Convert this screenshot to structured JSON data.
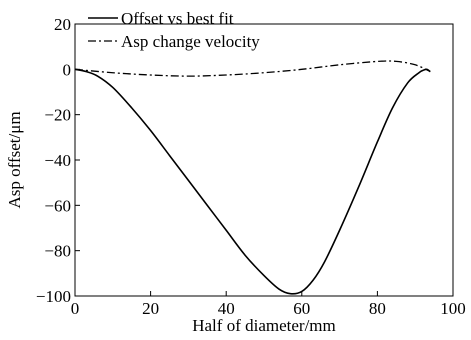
{
  "chart_data": {
    "type": "line",
    "xlabel": "Half of diameter/mm",
    "ylabel": "Asp offset/μm",
    "xlim": [
      0,
      100
    ],
    "ylim": [
      -100,
      20
    ],
    "xticks": [
      0,
      20,
      40,
      60,
      80,
      100
    ],
    "yticks": [
      -100,
      -80,
      -60,
      -40,
      -20,
      0,
      20
    ],
    "xtick_labels": [
      "0",
      "20",
      "40",
      "60",
      "80",
      "100"
    ],
    "ytick_labels": [
      "−100",
      "−80",
      "−60",
      "−40",
      "−20",
      "0",
      "20"
    ],
    "grid": false,
    "legend": {
      "position": "top-left"
    },
    "series": [
      {
        "name": "Offset vs best fit",
        "style": "solid",
        "color": "#000000",
        "x": [
          0,
          3,
          6,
          10,
          15,
          20,
          25,
          30,
          35,
          40,
          45,
          50,
          54,
          57,
          60,
          63,
          66,
          70,
          75,
          80,
          84,
          88,
          91,
          92,
          93,
          94
        ],
        "y": [
          0,
          -1,
          -3,
          -8,
          -17,
          -27,
          -38,
          -49,
          -60,
          -71,
          -82,
          -91,
          -97,
          -99,
          -98,
          -93,
          -85,
          -71,
          -52,
          -32,
          -17,
          -6,
          -1.5,
          -0.5,
          0,
          -1
        ]
      },
      {
        "name": "Asp change velocity",
        "style": "dash-dot",
        "color": "#000000",
        "x": [
          0,
          10,
          20,
          30,
          40,
          50,
          60,
          70,
          80,
          85,
          90,
          94
        ],
        "y": [
          0,
          -1.5,
          -2.5,
          -3,
          -2.5,
          -1.5,
          0,
          2,
          3.5,
          3.5,
          2,
          -1
        ]
      }
    ]
  }
}
